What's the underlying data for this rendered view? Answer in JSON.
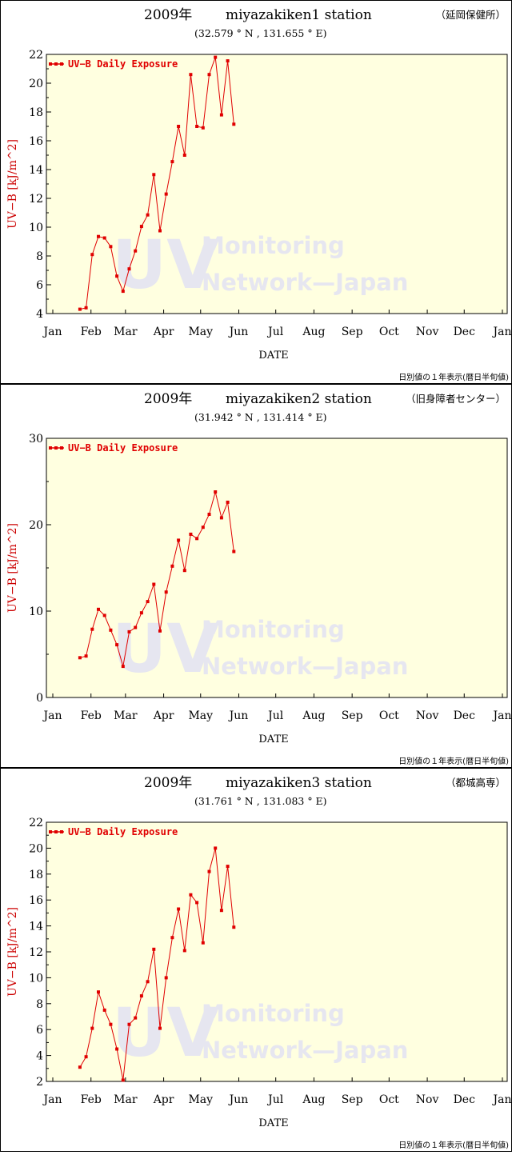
{
  "watermark": {
    "big": "UV",
    "line1": "Monitoring",
    "line2": "Network—Japan"
  },
  "colors": {
    "series": "#e00000",
    "plot_bg": "#ffffe0",
    "watermark": "#e6e6f0",
    "axis": "#000000",
    "ylabel": "#cc0000"
  },
  "chart_data": [
    {
      "type": "line",
      "year_title": "2009年",
      "station": "miyazakiken1 station",
      "location": "（延岡保健所）",
      "coords": "(32.579 ° N , 131.655 ° E)",
      "xlabel": "DATE",
      "ylabel": "UV−B [kJ/m^2]",
      "footnote": "日別値の１年表示(暦日半旬値)",
      "legend": "UV−B Daily Exposure",
      "x_ticks": [
        "Jan",
        "Feb",
        "Mar",
        "Apr",
        "May",
        "Jun",
        "Jul",
        "Aug",
        "Sep",
        "Oct",
        "Nov",
        "Dec",
        "Jan"
      ],
      "y_ticks": [
        "4",
        "6",
        "8",
        "10",
        "12",
        "14",
        "16",
        "18",
        "20",
        "22"
      ],
      "ylim": [
        4,
        22
      ],
      "grid": false,
      "legend_position": "top-left",
      "x": [
        "Jan 23",
        "Jan 28",
        "Feb 2",
        "Feb 7",
        "Feb 12",
        "Feb 17",
        "Feb 22",
        "Feb 27",
        "Mar 4",
        "Mar 9",
        "Mar 14",
        "Mar 19",
        "Mar 24",
        "Mar 29",
        "Apr 3",
        "Apr 8",
        "Apr 13",
        "Apr 18",
        "Apr 23",
        "Apr 28",
        "May 3",
        "May 8",
        "May 13",
        "May 18",
        "May 23",
        "May 28"
      ],
      "values": [
        4.3,
        4.4,
        8.1,
        9.35,
        9.25,
        8.65,
        6.6,
        5.55,
        7.1,
        8.35,
        10.05,
        10.85,
        13.65,
        9.75,
        12.3,
        14.55,
        17.0,
        15.0,
        20.6,
        17.0,
        16.9,
        20.6,
        21.8,
        17.8,
        21.55,
        17.15
      ]
    },
    {
      "type": "line",
      "year_title": "2009年",
      "station": "miyazakiken2 station",
      "location": "（旧身障者センター）",
      "coords": "(31.942 ° N , 131.414 ° E)",
      "xlabel": "DATE",
      "ylabel": "UV−B [kJ/m^2]",
      "footnote": "日別値の１年表示(暦日半旬値)",
      "legend": "UV−B Daily Exposure",
      "x_ticks": [
        "Jan",
        "Feb",
        "Mar",
        "Apr",
        "May",
        "Jun",
        "Jul",
        "Aug",
        "Sep",
        "Oct",
        "Nov",
        "Dec",
        "Jan"
      ],
      "y_ticks": [
        "0",
        "10",
        "20",
        "30"
      ],
      "ylim": [
        0,
        30
      ],
      "grid": false,
      "legend_position": "top-left",
      "x": [
        "Jan 23",
        "Jan 28",
        "Feb 2",
        "Feb 7",
        "Feb 12",
        "Feb 17",
        "Feb 22",
        "Feb 27",
        "Mar 4",
        "Mar 9",
        "Mar 14",
        "Mar 19",
        "Mar 24",
        "Mar 29",
        "Apr 3",
        "Apr 8",
        "Apr 13",
        "Apr 18",
        "Apr 23",
        "Apr 28",
        "May 3",
        "May 8",
        "May 13",
        "May 18",
        "May 23",
        "May 28"
      ],
      "values": [
        4.6,
        4.8,
        7.9,
        10.2,
        9.5,
        7.8,
        6.1,
        3.6,
        7.6,
        8.1,
        9.8,
        11.1,
        13.1,
        7.7,
        12.2,
        15.2,
        18.2,
        14.7,
        18.9,
        18.4,
        19.7,
        21.2,
        23.8,
        20.8,
        22.6,
        16.9
      ]
    },
    {
      "type": "line",
      "year_title": "2009年",
      "station": "miyazakiken3 station",
      "location": "（都城高専）",
      "coords": "(31.761 ° N , 131.083 ° E)",
      "xlabel": "DATE",
      "ylabel": "UV−B [kJ/m^2]",
      "footnote": "日別値の１年表示(暦日半旬値)",
      "legend": "UV−B Daily Exposure",
      "x_ticks": [
        "Jan",
        "Feb",
        "Mar",
        "Apr",
        "May",
        "Jun",
        "Jul",
        "Aug",
        "Sep",
        "Oct",
        "Nov",
        "Dec",
        "Jan"
      ],
      "y_ticks": [
        "2",
        "4",
        "6",
        "8",
        "10",
        "12",
        "14",
        "16",
        "18",
        "20",
        "22"
      ],
      "ylim": [
        2,
        22
      ],
      "grid": false,
      "legend_position": "top-left",
      "x": [
        "Jan 23",
        "Jan 28",
        "Feb 2",
        "Feb 7",
        "Feb 12",
        "Feb 17",
        "Feb 22",
        "Feb 27",
        "Mar 4",
        "Mar 9",
        "Mar 14",
        "Mar 19",
        "Mar 24",
        "Mar 29",
        "Apr 3",
        "Apr 8",
        "Apr 13",
        "Apr 18",
        "Apr 23",
        "Apr 28",
        "May 3",
        "May 8",
        "May 13",
        "May 18",
        "May 23",
        "May 28"
      ],
      "values": [
        3.1,
        3.9,
        6.1,
        8.9,
        7.5,
        6.4,
        4.5,
        2.1,
        6.4,
        6.9,
        8.6,
        9.7,
        12.2,
        6.1,
        10.0,
        13.1,
        15.3,
        12.1,
        16.4,
        15.8,
        12.7,
        18.2,
        20.0,
        15.2,
        18.6,
        13.9
      ]
    }
  ]
}
